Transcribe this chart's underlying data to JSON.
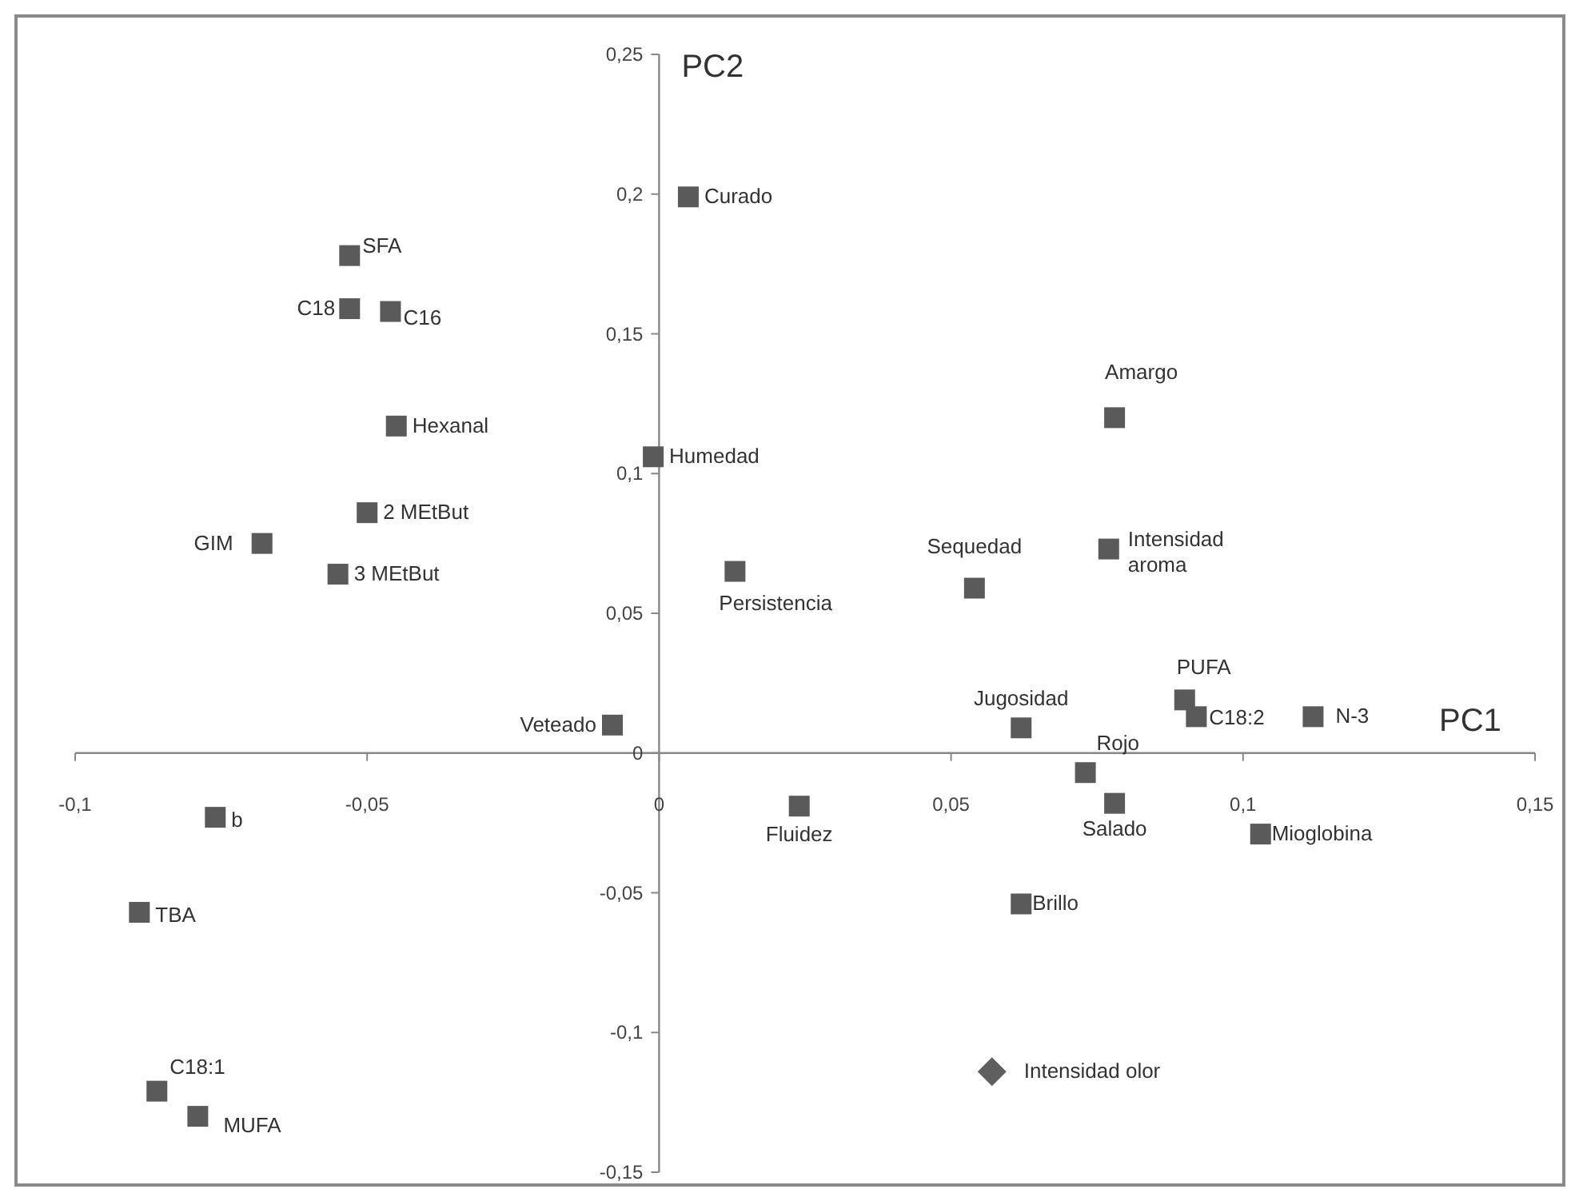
{
  "chart_data": {
    "type": "scatter",
    "xlabel": "PC1",
    "ylabel": "PC2",
    "xlim": [
      -0.1,
      0.15
    ],
    "ylim": [
      -0.15,
      0.25
    ],
    "xticks": [
      {
        "value": -0.1,
        "label": "-0,1"
      },
      {
        "value": -0.05,
        "label": "-0,05"
      },
      0,
      {
        "value": 0.05,
        "label": "0,05"
      },
      {
        "value": 0.1,
        "label": "0,1"
      },
      {
        "value": 0.15,
        "label": "0,15"
      }
    ],
    "yticks": [
      {
        "value": -0.15,
        "label": "-0,15"
      },
      {
        "value": -0.1,
        "label": "-0,1"
      },
      {
        "value": -0.05,
        "label": "-0,05"
      },
      0,
      {
        "value": 0.05,
        "label": "0,05"
      },
      {
        "value": 0.1,
        "label": "0,1"
      },
      {
        "value": 0.15,
        "label": "0,15"
      },
      {
        "value": 0.2,
        "label": "0,2"
      },
      {
        "value": 0.25,
        "label": "0,25"
      }
    ],
    "grid": false,
    "series": [
      {
        "color": "#5a5a5a",
        "marker": "square",
        "x": [
          0.005,
          -0.053,
          -0.053,
          -0.046,
          -0.045,
          -0.001,
          -0.05,
          -0.068,
          -0.055,
          0.013,
          0.078,
          0.054,
          0.077,
          -0.008,
          -0.076,
          -0.089,
          -0.086,
          -0.079,
          0.024,
          0.062,
          0.09,
          0.092,
          0.112,
          0.073,
          0.078,
          0.103,
          0.062
        ],
        "values": [
          0.199,
          0.178,
          0.159,
          0.158,
          0.117,
          0.106,
          0.086,
          0.075,
          0.064,
          0.065,
          0.12,
          0.059,
          0.073,
          0.01,
          -0.023,
          -0.057,
          -0.121,
          -0.13,
          -0.019,
          0.009,
          0.019,
          0.013,
          0.013,
          -0.007,
          -0.018,
          -0.029,
          -0.054
        ]
      },
      {
        "color": "#5f5f5f",
        "marker": "diamond",
        "x": [
          0.057
        ],
        "values": [
          -0.114
        ]
      }
    ],
    "annotations": [
      {
        "text": "Curado",
        "x": 0.005,
        "y": 0.199
      },
      {
        "text": "SFA",
        "x": -0.053,
        "y": 0.178
      },
      {
        "text": "C18",
        "x": -0.053,
        "y": 0.159
      },
      {
        "text": "C16",
        "x": -0.046,
        "y": 0.158
      },
      {
        "text": "Hexanal",
        "x": -0.045,
        "y": 0.117
      },
      {
        "text": "Humedad",
        "x": -0.001,
        "y": 0.106
      },
      {
        "text": "2 MEtBut",
        "x": -0.05,
        "y": 0.086
      },
      {
        "text": "GIM",
        "x": -0.068,
        "y": 0.075
      },
      {
        "text": "3 MEtBut",
        "x": -0.055,
        "y": 0.064
      },
      {
        "text": "Persistencia",
        "x": 0.013,
        "y": 0.065
      },
      {
        "text": "Amargo",
        "x": 0.078,
        "y": 0.12
      },
      {
        "text": "Sequedad",
        "x": 0.054,
        "y": 0.059
      },
      {
        "text": "Intensidad aroma",
        "x": 0.077,
        "y": 0.073
      },
      {
        "text": "Veteado",
        "x": -0.008,
        "y": 0.01
      },
      {
        "text": "b",
        "x": -0.076,
        "y": -0.023
      },
      {
        "text": "TBA",
        "x": -0.089,
        "y": -0.057
      },
      {
        "text": "C18:1",
        "x": -0.086,
        "y": -0.121
      },
      {
        "text": "MUFA",
        "x": -0.079,
        "y": -0.13
      },
      {
        "text": "Fluidez",
        "x": 0.024,
        "y": -0.019
      },
      {
        "text": "Jugosidad",
        "x": 0.062,
        "y": 0.009
      },
      {
        "text": "PUFA",
        "x": 0.09,
        "y": 0.019
      },
      {
        "text": "C18:2",
        "x": 0.092,
        "y": 0.013
      },
      {
        "text": "N-3",
        "x": 0.112,
        "y": 0.013
      },
      {
        "text": "Rojo",
        "x": 0.073,
        "y": -0.007
      },
      {
        "text": "Salado",
        "x": 0.078,
        "y": -0.018
      },
      {
        "text": "Mioglobina",
        "x": 0.103,
        "y": -0.029
      },
      {
        "text": "Brillo",
        "x": 0.062,
        "y": -0.054
      },
      {
        "text": "Intensidad olor",
        "x": 0.057,
        "y": -0.114
      }
    ]
  }
}
